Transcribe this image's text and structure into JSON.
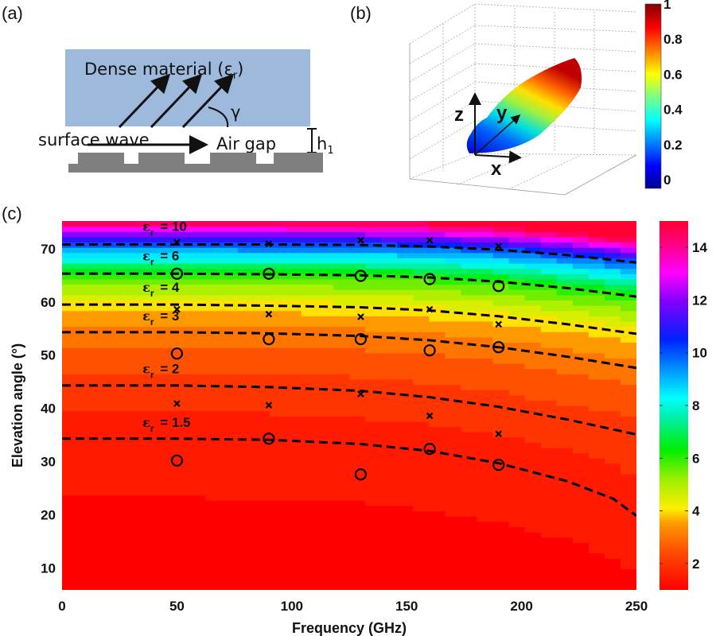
{
  "panels": {
    "a": {
      "label": "(a)",
      "dense_material_text": "Dense material (ε",
      "dense_material_sub": "r",
      "dense_material_close": ")",
      "surface_wave_text": "surface wave",
      "air_gap_text": "Air gap",
      "gamma_symbol": "γ",
      "h_text": "h",
      "h_sub": "1",
      "colors": {
        "dense": "#9db9db",
        "substrate": "#7f7f7f"
      }
    },
    "b": {
      "label": "(b)",
      "axis_labels": {
        "x": "x",
        "y": "y",
        "z": "z"
      },
      "colorbar": {
        "ticks": [
          "0",
          "0.2",
          "0.4",
          "0.6",
          "0.8",
          "1"
        ],
        "tick_values": [
          0,
          0.2,
          0.4,
          0.6,
          0.8,
          1
        ],
        "range": [
          -0.05,
          1
        ],
        "colormap": "jet"
      }
    },
    "c": {
      "label": "(c)"
    }
  },
  "chart_data": {
    "type": "heatmap",
    "title": "",
    "xlabel": "Frequency (GHz)",
    "ylabel": "Elevation angle (°)",
    "xlim": [
      0,
      250
    ],
    "ylim": [
      5.9,
      75.2
    ],
    "xticks": [
      0,
      50,
      100,
      150,
      200,
      250
    ],
    "xtick_labels": [
      "0",
      "50",
      "100",
      "150",
      "200",
      "250"
    ],
    "yticks": [
      10,
      20,
      30,
      40,
      50,
      60,
      70
    ],
    "ytick_labels": [
      "10",
      "20",
      "30",
      "40",
      "50",
      "60",
      "70"
    ],
    "grid": false,
    "colorbar": {
      "ticks": [
        2,
        4,
        6,
        8,
        10,
        12,
        14
      ],
      "tick_labels": [
        "2",
        "4",
        "6",
        "8",
        "10",
        "12",
        "14"
      ],
      "range": [
        1,
        15
      ],
      "colormap": "hsv-reversed"
    },
    "heatmap_description": "Permittivity εr that gives elevation angle as function of frequency; bands from εr≈1 at bottom (red) up to εr≈15 at top (red wrap)",
    "contours": [
      {
        "name": "εr = 10",
        "eps": "10",
        "x": [
          0,
          50,
          90,
          130,
          160,
          190,
          220,
          250
        ],
        "y": [
          70.8,
          70.8,
          70.8,
          70.7,
          70.4,
          69.8,
          68.8,
          67.4
        ]
      },
      {
        "name": "εr = 6",
        "eps": "6",
        "x": [
          0,
          50,
          90,
          130,
          160,
          190,
          220,
          250
        ],
        "y": [
          65.3,
          65.3,
          65.2,
          65.0,
          64.6,
          63.8,
          62.6,
          61.0
        ]
      },
      {
        "name": "εr = 4",
        "eps": "4",
        "x": [
          0,
          50,
          90,
          130,
          160,
          190,
          220,
          250
        ],
        "y": [
          59.5,
          59.5,
          59.3,
          59.0,
          58.4,
          57.3,
          55.8,
          54.0
        ]
      },
      {
        "name": "εr = 3",
        "eps": "3",
        "x": [
          0,
          50,
          90,
          130,
          160,
          190,
          220,
          250
        ],
        "y": [
          54.3,
          54.3,
          54.1,
          53.6,
          52.8,
          51.5,
          49.7,
          47.6
        ]
      },
      {
        "name": "εr = 2",
        "eps": "2",
        "x": [
          0,
          50,
          90,
          130,
          160,
          190,
          220,
          250
        ],
        "y": [
          44.3,
          44.3,
          44.0,
          43.3,
          42.1,
          40.3,
          37.9,
          35.1
        ]
      },
      {
        "name": "εr = 1.5",
        "eps": "1.5",
        "x": [
          0,
          50,
          90,
          130,
          160,
          190,
          220,
          240,
          250
        ],
        "y": [
          34.3,
          34.3,
          34.1,
          33.3,
          32.0,
          29.7,
          26.3,
          23.0,
          19.8
        ]
      }
    ],
    "annotations": [
      {
        "text": "= 10",
        "eps_prefix": "ε",
        "sub": "r",
        "x": 35,
        "y": 73.3
      },
      {
        "text": "= 6",
        "eps_prefix": "ε",
        "sub": "r",
        "x": 35,
        "y": 67.8
      },
      {
        "text": "= 4",
        "eps_prefix": "ε",
        "sub": "r",
        "x": 35,
        "y": 61.9
      },
      {
        "text": "= 3",
        "eps_prefix": "ε",
        "sub": "r",
        "x": 35,
        "y": 56.5
      },
      {
        "text": "= 2",
        "eps_prefix": "ε",
        "sub": "r",
        "x": 35,
        "y": 46.6
      },
      {
        "text": "= 1.5",
        "eps_prefix": "ε",
        "sub": "r",
        "x": 35,
        "y": 36.5
      }
    ],
    "markers_x": [
      {
        "x": 50,
        "y": 71.2
      },
      {
        "x": 90,
        "y": 70.9
      },
      {
        "x": 130,
        "y": 71.6
      },
      {
        "x": 160,
        "y": 71.6
      },
      {
        "x": 190,
        "y": 70.5
      },
      {
        "x": 50,
        "y": 58.6
      },
      {
        "x": 90,
        "y": 57.7
      },
      {
        "x": 130,
        "y": 57.2
      },
      {
        "x": 160,
        "y": 58.6
      },
      {
        "x": 190,
        "y": 55.8
      },
      {
        "x": 50,
        "y": 40.9
      },
      {
        "x": 90,
        "y": 40.6
      },
      {
        "x": 130,
        "y": 42.7
      },
      {
        "x": 160,
        "y": 38.6
      },
      {
        "x": 190,
        "y": 35.2
      }
    ],
    "markers_o": [
      {
        "x": 50,
        "y": 65.3
      },
      {
        "x": 90,
        "y": 65.3
      },
      {
        "x": 130,
        "y": 64.9
      },
      {
        "x": 160,
        "y": 64.3
      },
      {
        "x": 190,
        "y": 63.0
      },
      {
        "x": 50,
        "y": 50.3
      },
      {
        "x": 90,
        "y": 53.0
      },
      {
        "x": 130,
        "y": 53.0
      },
      {
        "x": 160,
        "y": 50.9
      },
      {
        "x": 190,
        "y": 51.5
      },
      {
        "x": 50,
        "y": 30.2
      },
      {
        "x": 90,
        "y": 34.3
      },
      {
        "x": 130,
        "y": 27.6
      },
      {
        "x": 160,
        "y": 32.4
      },
      {
        "x": 190,
        "y": 29.4
      }
    ]
  }
}
